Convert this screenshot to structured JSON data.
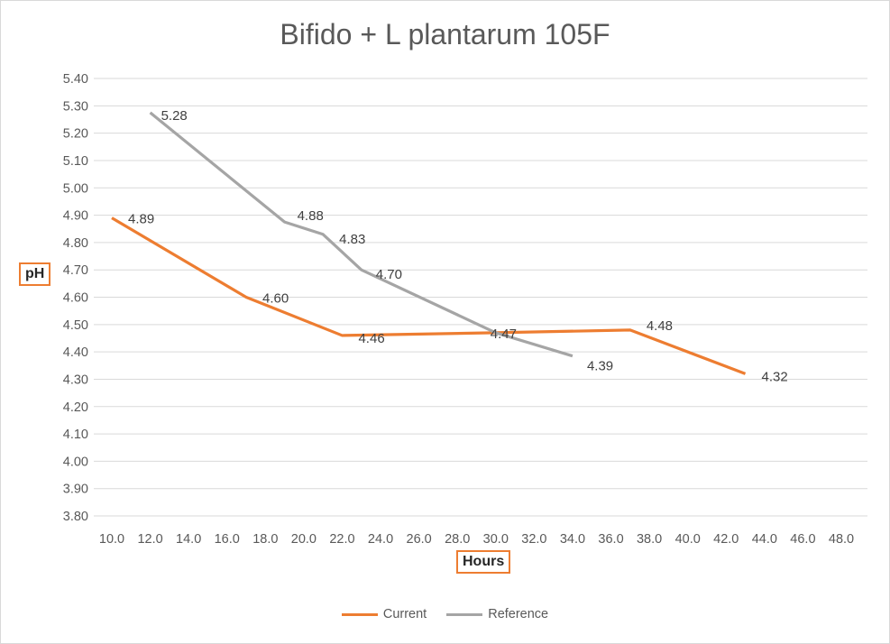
{
  "colors": {
    "current": "#ed7d31",
    "reference": "#a5a5a5",
    "grid": "#d9d9d9"
  },
  "chart_data": {
    "type": "line",
    "title": "Bifido + L plantarum 105F",
    "xlabel": "Hours",
    "ylabel": "pH",
    "xlim": [
      10,
      48
    ],
    "ylim": [
      3.8,
      5.4
    ],
    "x_ticks": [
      "10.0",
      "12.0",
      "14.0",
      "16.0",
      "18.0",
      "20.0",
      "22.0",
      "24.0",
      "26.0",
      "28.0",
      "30.0",
      "32.0",
      "34.0",
      "36.0",
      "38.0",
      "40.0",
      "42.0",
      "44.0",
      "46.0",
      "48.0"
    ],
    "y_ticks": [
      "3.80",
      "3.90",
      "4.00",
      "4.10",
      "4.20",
      "4.30",
      "4.40",
      "4.50",
      "4.60",
      "4.70",
      "4.80",
      "4.90",
      "5.00",
      "5.10",
      "5.20",
      "5.30",
      "5.40"
    ],
    "grid": true,
    "legend": "bottom",
    "series": [
      {
        "name": "Current",
        "points": [
          {
            "x": 10,
            "y": 4.89,
            "label": "4.89"
          },
          {
            "x": 17,
            "y": 4.6,
            "label": "4.60"
          },
          {
            "x": 22,
            "y": 4.46,
            "label": "4.46"
          },
          {
            "x": 30,
            "y": 4.47,
            "label": "4.47"
          },
          {
            "x": 37,
            "y": 4.48,
            "label": "4.48"
          },
          {
            "x": 43,
            "y": 4.32,
            "label": "4.32"
          }
        ]
      },
      {
        "name": "Reference",
        "points": [
          {
            "x": 12,
            "y": 5.275,
            "label": "5.28"
          },
          {
            "x": 19,
            "y": 4.875,
            "label": "4.88"
          },
          {
            "x": 21,
            "y": 4.83,
            "label": "4.83"
          },
          {
            "x": 23,
            "y": 4.7,
            "label": "4.70"
          },
          {
            "x": 30,
            "y": 4.47,
            "label": ""
          },
          {
            "x": 34,
            "y": 4.385,
            "label": "4.39"
          }
        ]
      }
    ]
  }
}
